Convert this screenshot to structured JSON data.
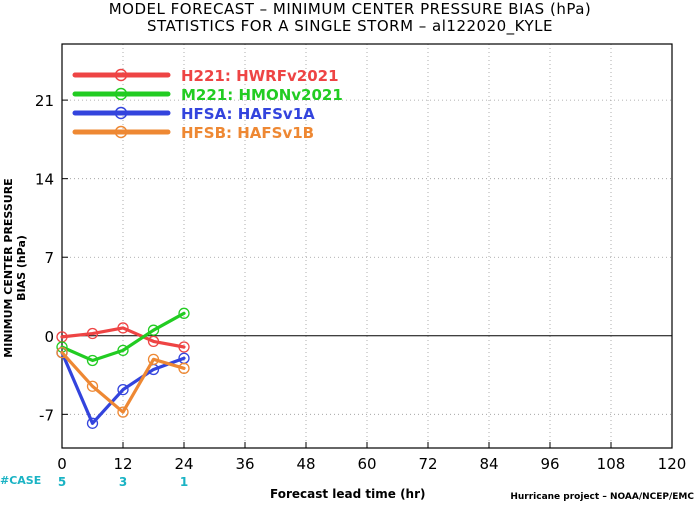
{
  "title": {
    "line1": "MODEL FORECAST – MINIMUM CENTER PRESSURE BIAS (hPa)",
    "line2": "STATISTICS FOR A SINGLE STORM – al122020_KYLE"
  },
  "footer": {
    "credit": "Hurricane project – NOAA/NCEP/EMC",
    "case_label": "#CASE"
  },
  "chart_data": {
    "type": "line",
    "xlabel": "Forecast lead time (hr)",
    "ylabel": "MINIMUM CENTER PRESSURE BIAS (hPa)",
    "xlim": [
      0,
      120
    ],
    "ylim": [
      -10,
      26
    ],
    "xticks": [
      0,
      12,
      24,
      36,
      48,
      60,
      72,
      84,
      96,
      108,
      120
    ],
    "yticks": [
      -7,
      0,
      7,
      14,
      21
    ],
    "grid": true,
    "legend_position": "top-left",
    "cases": [
      {
        "x": 0,
        "count": "5"
      },
      {
        "x": 12,
        "count": "3"
      },
      {
        "x": 24,
        "count": "1"
      }
    ],
    "series": [
      {
        "name": "H221: HWRFv2021",
        "color": "#ee4444",
        "x": [
          0,
          6,
          12,
          18,
          24
        ],
        "y": [
          -0.1,
          0.2,
          0.7,
          -0.5,
          -1.0
        ]
      },
      {
        "name": "M221: HMONv2021",
        "color": "#22cc22",
        "x": [
          0,
          6,
          12,
          18,
          24
        ],
        "y": [
          -1.0,
          -2.2,
          -1.3,
          0.5,
          2.0
        ]
      },
      {
        "name": "HFSA: HAFSv1A",
        "color": "#3344dd",
        "x": [
          0,
          6,
          12,
          18,
          24
        ],
        "y": [
          -1.5,
          -7.8,
          -4.8,
          -3.0,
          -2.0
        ]
      },
      {
        "name": "HFSB: HAFSv1B",
        "color": "#ee8833",
        "x": [
          0,
          6,
          12,
          18,
          24
        ],
        "y": [
          -1.5,
          -4.5,
          -6.8,
          -2.1,
          -2.9
        ]
      }
    ]
  }
}
